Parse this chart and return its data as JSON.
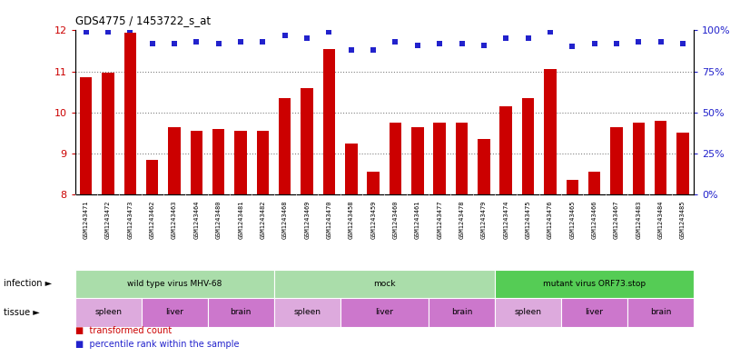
{
  "title": "GDS4775 / 1453722_s_at",
  "samples": [
    "GSM1243471",
    "GSM1243472",
    "GSM1243473",
    "GSM1243462",
    "GSM1243463",
    "GSM1243464",
    "GSM1243480",
    "GSM1243481",
    "GSM1243482",
    "GSM1243468",
    "GSM1243469",
    "GSM1243470",
    "GSM1243458",
    "GSM1243459",
    "GSM1243460",
    "GSM1243461",
    "GSM1243477",
    "GSM1243478",
    "GSM1243479",
    "GSM1243474",
    "GSM1243475",
    "GSM1243476",
    "GSM1243465",
    "GSM1243466",
    "GSM1243467",
    "GSM1243483",
    "GSM1243484",
    "GSM1243485"
  ],
  "transformed_count": [
    10.85,
    10.98,
    11.95,
    8.85,
    9.65,
    9.55,
    9.6,
    9.55,
    9.55,
    10.35,
    10.6,
    11.55,
    9.25,
    8.55,
    9.75,
    9.65,
    9.75,
    9.75,
    9.35,
    10.15,
    10.35,
    11.05,
    8.35,
    8.55,
    9.65,
    9.75,
    9.8,
    9.5
  ],
  "percentile_rank": [
    99,
    99,
    100,
    92,
    92,
    93,
    92,
    93,
    93,
    97,
    95,
    99,
    88,
    88,
    93,
    91,
    92,
    92,
    91,
    95,
    95,
    99,
    90,
    92,
    92,
    93,
    93,
    92
  ],
  "ylim_left": [
    8,
    12
  ],
  "ylim_right": [
    0,
    100
  ],
  "yticks_left": [
    8,
    9,
    10,
    11,
    12
  ],
  "yticks_right": [
    0,
    25,
    50,
    75,
    100
  ],
  "bar_color": "#cc0000",
  "dot_color": "#2222cc",
  "background_color": "#ffffff",
  "ticklabel_bg": "#d8d8d8",
  "infection_groups": [
    {
      "label": "wild type virus MHV-68",
      "start": 0,
      "end": 9,
      "color": "#aaddaa"
    },
    {
      "label": "mock",
      "start": 9,
      "end": 19,
      "color": "#aaddaa"
    },
    {
      "label": "mutant virus ORF73.stop",
      "start": 19,
      "end": 28,
      "color": "#55cc55"
    }
  ],
  "tissue_groups": [
    {
      "label": "spleen",
      "start": 0,
      "end": 3,
      "color": "#ddaadd"
    },
    {
      "label": "liver",
      "start": 3,
      "end": 6,
      "color": "#cc77cc"
    },
    {
      "label": "brain",
      "start": 6,
      "end": 9,
      "color": "#cc77cc"
    },
    {
      "label": "spleen",
      "start": 9,
      "end": 12,
      "color": "#ddaadd"
    },
    {
      "label": "liver",
      "start": 12,
      "end": 16,
      "color": "#cc77cc"
    },
    {
      "label": "brain",
      "start": 16,
      "end": 19,
      "color": "#cc77cc"
    },
    {
      "label": "spleen",
      "start": 19,
      "end": 22,
      "color": "#ddaadd"
    },
    {
      "label": "liver",
      "start": 22,
      "end": 25,
      "color": "#cc77cc"
    },
    {
      "label": "brain",
      "start": 25,
      "end": 28,
      "color": "#cc77cc"
    }
  ],
  "infection_label": "infection",
  "tissue_label": "tissue",
  "legend_items": [
    {
      "label": "transformed count",
      "color": "#cc0000"
    },
    {
      "label": "percentile rank within the sample",
      "color": "#2222cc"
    }
  ]
}
